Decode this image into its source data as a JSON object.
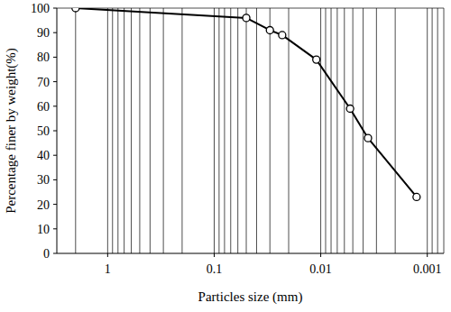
{
  "chart_data": {
    "type": "line",
    "x_label": "Particles size (mm)",
    "y_label": "Percentage finer by weight(%)",
    "x": [
      2,
      0.05,
      0.03,
      0.023,
      0.011,
      0.0053,
      0.0036,
      0.00126
    ],
    "values": [
      100,
      96,
      91,
      89,
      79,
      59,
      47,
      23
    ],
    "xlim": [
      3,
      0.0007
    ],
    "ylim": [
      0,
      100
    ],
    "xticks": [
      1,
      0.1,
      0.01,
      0.001
    ],
    "yticks": [
      0,
      10,
      20,
      30,
      40,
      50,
      60,
      70,
      80,
      90,
      100
    ],
    "log": "x",
    "grid": true,
    "marker": "circle",
    "color": "#000000"
  }
}
